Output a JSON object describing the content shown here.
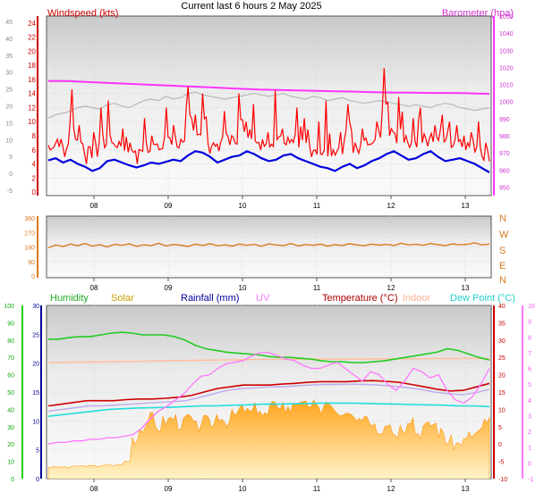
{
  "title": "Current last 6 hours 2 May 2025",
  "colors": {
    "wind": "#ff0000",
    "gust_band": "#b8b8b8",
    "baro": "#ff33ff",
    "wind_avg": "#0000dd",
    "direction": "#d87a1e",
    "humidity": "#22cc22",
    "solar": "#ffb020",
    "rainfall": "#000099",
    "uv": "#ff77ff",
    "temperature": "#cc0000",
    "indoor": "#ffc0a0",
    "dewpoint": "#22dddd",
    "feels": "#bbaaee"
  },
  "chart_data": [
    {
      "type": "line",
      "x_tick_labels": [
        "08",
        "09",
        "10",
        "11",
        "12",
        "13"
      ],
      "y_left": {
        "label": "Windspeed (kts)",
        "ticks": [
          0,
          2,
          4,
          6,
          8,
          10,
          12,
          14,
          16,
          18,
          20,
          22,
          24
        ],
        "ylim": [
          -0.5,
          25
        ]
      },
      "y_far_left": {
        "ticks": [
          -5,
          0,
          5,
          10,
          15,
          20,
          25,
          30,
          35,
          40,
          45
        ]
      },
      "y_right": {
        "label": "Barometer (hpa)",
        "ticks": [
          950,
          960,
          970,
          980,
          990,
          1000,
          1010,
          1020,
          1030,
          1040,
          1050
        ],
        "ylim": [
          945,
          1050
        ]
      },
      "series": [
        {
          "key": "wind_avg",
          "values": [
            4.5,
            4.8,
            4.2,
            4.6,
            4.0,
            3.6,
            3.0,
            3.4,
            4.4,
            4.6,
            4.2,
            3.8,
            3.5,
            3.8,
            4.2,
            4.0,
            4.3,
            4.6,
            4.4,
            5.2,
            5.8,
            5.6,
            5.0,
            4.2,
            4.6,
            5.0,
            5.2,
            5.8,
            5.4,
            4.8,
            4.4,
            4.6,
            5.2,
            5.4,
            4.8,
            4.4,
            4.0,
            3.6,
            3.4,
            3.0,
            3.6,
            4.0,
            3.4,
            3.8,
            4.4,
            4.8,
            5.4,
            5.8,
            5.2,
            4.6,
            4.8,
            5.4,
            5.8,
            5.0,
            4.4,
            4.6,
            4.8,
            4.4,
            4.0,
            3.4,
            2.8
          ]
        },
        {
          "key": "wind_peak",
          "values": [
            6.0,
            7.5,
            5.0,
            14.6,
            9.5,
            4.0,
            8.5,
            12.0,
            13.0,
            6.5,
            9.0,
            7.0,
            4.0,
            10.5,
            8.0,
            6.0,
            12.0,
            9.5,
            7.5,
            15.0,
            11.0,
            14.0,
            5.5,
            6.8,
            11.5,
            8.0,
            14.0,
            10.0,
            12.5,
            6.0,
            8.5,
            14.5,
            9.0,
            7.0,
            12.0,
            10.5,
            5.0,
            10.0,
            13.0,
            6.0,
            8.5,
            12.5,
            7.0,
            9.0,
            6.8,
            10.0,
            17.6,
            9.0,
            13.5,
            8.0,
            10.5,
            12.0,
            6.5,
            9.5,
            11.0,
            10.0,
            9.5,
            8.0,
            8.5,
            10.0,
            7.0
          ]
        },
        {
          "key": "gust_band",
          "values": [
            10.5,
            11.0,
            11.2,
            11.5,
            12.0,
            12.2,
            12.0,
            11.8,
            12.4,
            12.6,
            12.2,
            12.0,
            12.5,
            13.0,
            13.2,
            13.0,
            13.6,
            13.2,
            13.4,
            14.0,
            14.2,
            13.8,
            13.6,
            13.4,
            13.2,
            13.4,
            13.6,
            13.8,
            14.0,
            13.8,
            13.6,
            13.8,
            14.0,
            13.6,
            13.4,
            13.2,
            13.6,
            13.4,
            13.0,
            13.2,
            13.4,
            13.0,
            12.8,
            12.6,
            12.8,
            13.0,
            12.8,
            12.6,
            12.4,
            12.2,
            12.4,
            12.2,
            12.0,
            12.4,
            12.6,
            12.4,
            12.0,
            11.8,
            11.6,
            11.8,
            12.0
          ]
        },
        {
          "key": "barometer",
          "values": [
            1012,
            1012,
            1011.5,
            1011,
            1010.5,
            1010,
            1009.5,
            1009,
            1008.5,
            1008,
            1007.5,
            1007,
            1006.8,
            1006.5,
            1006.3,
            1006,
            1005.8,
            1005.5,
            1005.3,
            1005.2,
            1005,
            1005,
            1004.8,
            1004.5
          ]
        }
      ]
    },
    {
      "type": "line",
      "x_tick_labels": [
        "08",
        "09",
        "10",
        "11",
        "12",
        "13"
      ],
      "y_left": {
        "ticks": [
          0,
          90,
          180,
          270,
          360
        ],
        "ylim": [
          0,
          360
        ]
      },
      "y_right": {
        "ticks": [
          "N",
          "W",
          "S",
          "E",
          "N"
        ]
      },
      "series": [
        {
          "key": "wind_direction",
          "values": [
            175,
            192,
            183,
            198,
            188,
            201,
            185,
            194,
            180,
            196,
            190,
            199,
            184,
            193,
            188,
            202,
            186,
            195,
            191,
            183,
            197,
            189,
            200,
            187,
            193,
            185,
            198,
            190,
            196,
            184,
            199,
            192,
            188,
            201,
            186,
            195,
            190,
            197,
            185,
            194,
            189,
            200,
            192,
            187,
            198,
            191,
            196,
            189,
            203,
            192,
            197,
            190,
            201,
            194,
            188,
            199,
            193,
            196,
            205,
            192,
            198
          ]
        }
      ]
    },
    {
      "type": "line",
      "x_tick_labels": [
        "08",
        "09",
        "10",
        "11",
        "12",
        "13"
      ],
      "legend": [
        "Humidity",
        "Solar",
        "Rainfall (mm)",
        "UV",
        "Temperature (°C)",
        "Indoor",
        "Dew Point (°C)"
      ],
      "y_humidity": {
        "ticks": [
          0,
          10,
          20,
          30,
          40,
          50,
          60,
          70,
          80,
          90,
          100
        ],
        "ylim": [
          0,
          100
        ]
      },
      "y_rainfall": {
        "ticks": [
          0,
          5,
          10,
          15,
          20,
          25,
          30
        ],
        "ylim": [
          0,
          30
        ]
      },
      "y_temperature": {
        "ticks": [
          -10,
          -5,
          0,
          5,
          10,
          15,
          20,
          25,
          30,
          35,
          40
        ],
        "ylim": [
          -10,
          40
        ]
      },
      "y_uv": {
        "ticks": [
          -1,
          0,
          1,
          2,
          3,
          4,
          5,
          6,
          7,
          8,
          9,
          10
        ],
        "ylim": [
          -1,
          10
        ]
      },
      "series": [
        {
          "key": "humidity",
          "values": [
            80.5,
            80.5,
            81.5,
            82,
            82,
            83,
            84,
            84.5,
            84,
            83,
            83,
            83,
            82,
            80,
            77,
            75,
            74,
            73,
            72.5,
            72,
            71.5,
            70.5,
            70,
            70,
            69.5,
            69,
            68,
            67.5,
            67.5,
            67,
            67,
            67.5,
            68,
            69,
            70,
            71,
            72,
            73,
            75,
            74,
            72,
            70,
            68.5
          ]
        },
        {
          "key": "indoor",
          "values": [
            23.5,
            23.6,
            23.7,
            23.8,
            23.9,
            24.0,
            24.1,
            24.2,
            24.3,
            24.4,
            24.4,
            24.5,
            24.5,
            24.5,
            24.6,
            24.6,
            24.6,
            24.7,
            24.7,
            24.7
          ]
        },
        {
          "key": "temperature",
          "values": [
            11,
            11.5,
            12,
            12.5,
            12.5,
            12.5,
            12.8,
            13,
            13,
            13.2,
            13.5,
            14,
            15,
            16,
            16.5,
            17,
            17,
            17,
            17.3,
            17.5,
            17.8,
            18,
            18,
            18,
            18.2,
            18.3,
            18.1,
            17.8,
            17.2,
            16.5,
            15.8,
            15.3,
            15.5,
            16.5,
            17.5
          ]
        },
        {
          "key": "feels_like",
          "values": [
            9.5,
            10,
            10.5,
            11,
            11,
            11.3,
            11.5,
            11.8,
            12,
            12.2,
            12.5,
            13.5,
            14.5,
            15.5,
            16,
            16.2,
            16.5,
            16.5,
            16.8,
            17,
            17.2,
            17.2,
            17.3,
            17.2,
            17,
            16.7,
            16.3,
            15.8,
            15,
            14.5,
            14.2,
            14.8,
            15.8
          ]
        },
        {
          "key": "dewpoint",
          "values": [
            8,
            8.5,
            9,
            9.5,
            10,
            10.2,
            10.4,
            10.5,
            10.6,
            10.8,
            11,
            11,
            11.2,
            11.3,
            11.5,
            11.5,
            11.6,
            11.7,
            11.8,
            11.8,
            11.8,
            11.7,
            11.6,
            11.5,
            11.4,
            11.3,
            11.2,
            11.0,
            11.0,
            10.8
          ]
        },
        {
          "key": "solar",
          "values": [
            2,
            2,
            2,
            2.1,
            2.2,
            2.2,
            2.2,
            2.3,
            2.3,
            2.4,
            3.0,
            7,
            9,
            10.5,
            9,
            10,
            10.5,
            9.5,
            10.5,
            9,
            10,
            9.5,
            11,
            10,
            11,
            12,
            11.5,
            12.2,
            11,
            12.5,
            13,
            12,
            13.5,
            12.5,
            13,
            12,
            13,
            12,
            10.5,
            11,
            9.5,
            11,
            10,
            8.5,
            10,
            8,
            9,
            10.5,
            8,
            9,
            9.5,
            8,
            6.5,
            6,
            6.5,
            7.5,
            8,
            10
          ]
        },
        {
          "key": "uv",
          "values": [
            1.2,
            1.3,
            1.3,
            1.4,
            1.4,
            1.5,
            1.5,
            1.6,
            1.6,
            1.7,
            1.8,
            2.2,
            2.8,
            3.3,
            3.6,
            4.0,
            4.4,
            5.0,
            5.5,
            5.6,
            6.0,
            6.3,
            6.4,
            6.5,
            6.8,
            7.0,
            7.0,
            6.8,
            6.6,
            6.5,
            6.2,
            6.0,
            6.0,
            6.2,
            6.4,
            6.0,
            5.6,
            5.2,
            5.8,
            5.6,
            5.0,
            4.6,
            5.2,
            6.0,
            5.8,
            5.4,
            5.6,
            4.6,
            4.0,
            3.8,
            4.2,
            5.0,
            6.0
          ]
        }
      ]
    }
  ]
}
